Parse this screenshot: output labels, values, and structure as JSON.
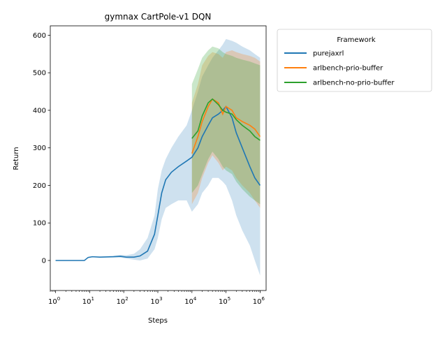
{
  "chart_data": {
    "type": "line",
    "title": "gymnax CartPole-v1 DQN",
    "xlabel": "Steps",
    "ylabel": "Return",
    "x_scale": "log",
    "xlim": [
      0.7,
      1500000
    ],
    "ylim": [
      -80,
      625
    ],
    "grid": false,
    "legend": {
      "title": "Framework",
      "placement": "outside right, top"
    },
    "x_ticks": [
      {
        "value": 1,
        "base": "10",
        "exp": "0"
      },
      {
        "value": 10,
        "base": "10",
        "exp": "1"
      },
      {
        "value": 100,
        "base": "10",
        "exp": "2"
      },
      {
        "value": 1000,
        "base": "10",
        "exp": "3"
      },
      {
        "value": 10000,
        "base": "10",
        "exp": "4"
      },
      {
        "value": 100000,
        "base": "10",
        "exp": "5"
      },
      {
        "value": 1000000,
        "base": "10",
        "exp": "6"
      }
    ],
    "y_ticks": [
      0,
      100,
      200,
      300,
      400,
      500,
      600
    ],
    "series": [
      {
        "name": "purejaxrl",
        "color": "#1f77b4",
        "x": [
          1,
          3,
          7,
          9,
          12,
          20,
          50,
          80,
          120,
          200,
          300,
          500,
          800,
          1000,
          1300,
          1700,
          2500,
          4000,
          7000,
          10000,
          15000,
          20000,
          30000,
          40000,
          60000,
          80000,
          100000,
          150000,
          200000,
          300000,
          500000,
          700000,
          1000000
        ],
        "y": [
          0,
          0,
          0,
          8,
          10,
          9,
          10,
          11,
          9,
          9,
          12,
          25,
          70,
          120,
          180,
          215,
          235,
          250,
          265,
          275,
          300,
          330,
          360,
          380,
          390,
          400,
          410,
          380,
          340,
          300,
          250,
          220,
          200
        ],
        "lower": [
          0,
          0,
          0,
          8,
          9,
          8,
          8,
          8,
          5,
          2,
          0,
          5,
          30,
          60,
          110,
          140,
          150,
          160,
          160,
          130,
          150,
          180,
          200,
          220,
          220,
          210,
          200,
          160,
          120,
          80,
          40,
          0,
          -40
        ],
        "upper": [
          0,
          0,
          0,
          9,
          11,
          10,
          13,
          15,
          14,
          18,
          30,
          60,
          120,
          190,
          240,
          270,
          300,
          330,
          360,
          400,
          450,
          490,
          520,
          540,
          560,
          575,
          590,
          585,
          580,
          570,
          560,
          550,
          540
        ]
      },
      {
        "name": "arlbench-prio-buffer",
        "color": "#ff7f0e",
        "x": [
          10000,
          15000,
          20000,
          30000,
          40000,
          60000,
          80000,
          100000,
          150000,
          200000,
          300000,
          500000,
          700000,
          1000000
        ],
        "y": [
          285,
          330,
          370,
          410,
          430,
          420,
          390,
          410,
          400,
          380,
          370,
          360,
          350,
          330
        ],
        "lower": [
          150,
          180,
          220,
          260,
          280,
          260,
          240,
          250,
          240,
          220,
          200,
          180,
          160,
          140
        ],
        "upper": [
          420,
          470,
          520,
          545,
          555,
          550,
          540,
          555,
          560,
          555,
          550,
          545,
          540,
          530
        ]
      },
      {
        "name": "arlbench-no-prio-buffer",
        "color": "#2ca02c",
        "x": [
          10000,
          15000,
          20000,
          30000,
          40000,
          60000,
          80000,
          100000,
          150000,
          200000,
          300000,
          500000,
          700000,
          1000000
        ],
        "y": [
          325,
          345,
          385,
          420,
          430,
          415,
          400,
          395,
          390,
          375,
          360,
          345,
          330,
          320
        ],
        "lower": [
          180,
          200,
          230,
          270,
          290,
          270,
          250,
          240,
          230,
          210,
          190,
          170,
          160,
          150
        ],
        "upper": [
          470,
          510,
          540,
          560,
          570,
          565,
          555,
          550,
          545,
          540,
          535,
          530,
          525,
          520
        ]
      }
    ]
  }
}
